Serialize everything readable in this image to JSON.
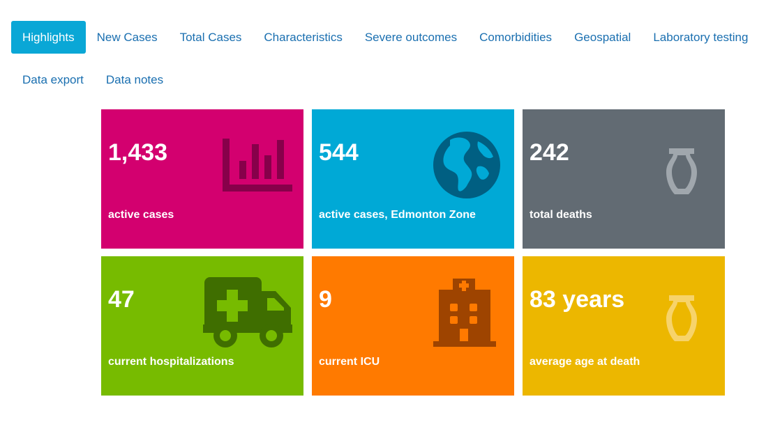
{
  "nav": {
    "tabs": [
      {
        "label": "Highlights",
        "active": true
      },
      {
        "label": "New Cases"
      },
      {
        "label": "Total Cases"
      },
      {
        "label": "Characteristics"
      },
      {
        "label": "Severe outcomes"
      },
      {
        "label": "Comorbidities"
      },
      {
        "label": "Geospatial"
      },
      {
        "label": "Laboratory testing"
      },
      {
        "label": "Data export"
      },
      {
        "label": "Data notes"
      }
    ]
  },
  "tiles": [
    {
      "value": "1,433",
      "label": "active cases",
      "color": "#d3006f",
      "icon": "bar-chart-icon"
    },
    {
      "value": "544",
      "label": "active cases, Edmonton Zone",
      "color": "#00a9d6",
      "icon": "globe-icon"
    },
    {
      "value": "242",
      "label": "total deaths",
      "color": "#626b73",
      "icon": "urn-icon"
    },
    {
      "value": "47",
      "label": "current hospitalizations",
      "color": "#77bb00",
      "icon": "ambulance-icon"
    },
    {
      "value": "9",
      "label": "current ICU",
      "color": "#ff7a00",
      "icon": "hospital-icon"
    },
    {
      "value": "83 years",
      "label": "average age at death",
      "color": "#ecb700",
      "icon": "urn-icon"
    }
  ]
}
